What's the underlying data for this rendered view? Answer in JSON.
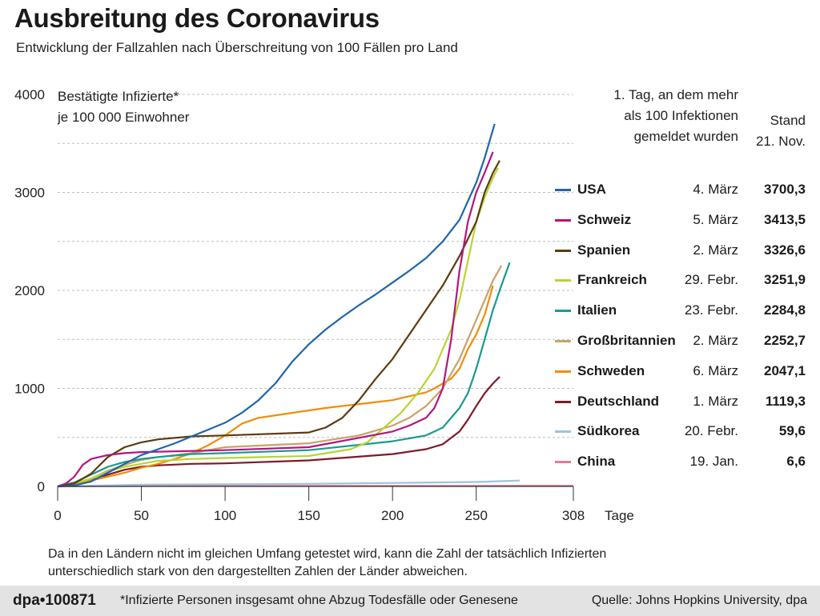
{
  "header": {
    "title": "Ausbreitung des Coronavirus",
    "subtitle": "Entwicklung der Fallzahlen nach Überschreitung von 100 Fällen pro Land"
  },
  "chart_data": {
    "type": "line",
    "ylabel_line1": "Bestätigte Infizierte*",
    "ylabel_line2": "je 100 000 Einwohner",
    "xlabel": "Tage",
    "xlim": [
      0,
      308
    ],
    "ylim": [
      0,
      4000
    ],
    "xticks": [
      "0",
      "50",
      "100",
      "150",
      "200",
      "250",
      "308"
    ],
    "yticks": [
      "0",
      "1000",
      "2000",
      "3000",
      "4000"
    ],
    "grid": "horizontal dashed",
    "legend_header": {
      "date_line1": "1. Tag, an dem mehr",
      "date_line2": "als 100 Infektionen",
      "date_line3": "gemeldet wurden",
      "value_line1": "Stand",
      "value_line2": "21. Nov."
    },
    "series": [
      {
        "name": "USA",
        "color": "#1f66a8",
        "start": "4. März",
        "latest": "3700,3",
        "x": [
          0,
          10,
          20,
          30,
          40,
          50,
          60,
          70,
          80,
          90,
          100,
          110,
          120,
          130,
          140,
          150,
          160,
          170,
          180,
          190,
          200,
          210,
          220,
          230,
          240,
          250,
          255,
          261
        ],
        "y": [
          0,
          10,
          50,
          140,
          230,
          320,
          380,
          440,
          510,
          580,
          650,
          750,
          880,
          1050,
          1270,
          1450,
          1600,
          1730,
          1850,
          1960,
          2080,
          2200,
          2330,
          2500,
          2720,
          3100,
          3350,
          3700
        ]
      },
      {
        "name": "Schweiz",
        "color": "#b3157f",
        "start": "5. März",
        "latest": "3413,5",
        "x": [
          0,
          5,
          10,
          15,
          20,
          30,
          40,
          50,
          100,
          150,
          200,
          210,
          220,
          225,
          230,
          235,
          240,
          245,
          250,
          255,
          260
        ],
        "y": [
          0,
          30,
          100,
          220,
          280,
          320,
          340,
          350,
          370,
          400,
          560,
          620,
          700,
          800,
          1000,
          1500,
          2200,
          2700,
          3000,
          3200,
          3413
        ]
      },
      {
        "name": "Spanien",
        "color": "#5e3a0f",
        "start": "2. März",
        "latest": "3326,6",
        "x": [
          0,
          10,
          20,
          30,
          40,
          50,
          60,
          80,
          100,
          150,
          160,
          170,
          180,
          190,
          200,
          210,
          220,
          230,
          240,
          250,
          255,
          260,
          264
        ],
        "y": [
          0,
          30,
          130,
          300,
          400,
          450,
          480,
          510,
          520,
          550,
          600,
          700,
          880,
          1100,
          1300,
          1550,
          1800,
          2050,
          2350,
          2700,
          3000,
          3200,
          3326
        ]
      },
      {
        "name": "Frankreich",
        "color": "#b7d432",
        "start": "29. Febr.",
        "latest": "3251,9",
        "x": [
          0,
          10,
          20,
          30,
          40,
          50,
          60,
          80,
          100,
          150,
          175,
          185,
          195,
          205,
          215,
          225,
          230,
          235,
          240,
          245,
          250,
          255,
          260,
          263
        ],
        "y": [
          0,
          30,
          80,
          150,
          200,
          230,
          260,
          280,
          290,
          310,
          380,
          450,
          600,
          750,
          950,
          1200,
          1400,
          1600,
          1900,
          2300,
          2700,
          2950,
          3150,
          3251
        ]
      },
      {
        "name": "Italien",
        "color": "#199a8f",
        "start": "23. Febr.",
        "latest": "2284,8",
        "x": [
          0,
          10,
          20,
          30,
          40,
          50,
          60,
          80,
          100,
          150,
          200,
          220,
          230,
          240,
          245,
          250,
          255,
          260,
          265,
          270
        ],
        "y": [
          0,
          40,
          120,
          200,
          250,
          280,
          300,
          330,
          340,
          370,
          460,
          520,
          600,
          800,
          950,
          1200,
          1500,
          1800,
          2050,
          2284
        ]
      },
      {
        "name": "Großbritannien",
        "color": "#c9a26a",
        "start": "2. März",
        "latest": "2252,7",
        "x": [
          0,
          10,
          20,
          30,
          40,
          50,
          60,
          80,
          100,
          150,
          180,
          200,
          210,
          220,
          230,
          240,
          250,
          255,
          260,
          265
        ],
        "y": [
          0,
          30,
          80,
          160,
          220,
          270,
          300,
          340,
          400,
          440,
          520,
          620,
          700,
          820,
          1000,
          1300,
          1700,
          1900,
          2100,
          2252
        ]
      },
      {
        "name": "Schweden",
        "color": "#ef8d0a",
        "start": "6. März",
        "latest": "2047,1",
        "x": [
          0,
          10,
          20,
          30,
          40,
          50,
          60,
          70,
          80,
          90,
          100,
          110,
          120,
          140,
          160,
          180,
          200,
          210,
          220,
          225,
          230,
          235,
          240,
          245,
          250,
          255,
          260
        ],
        "y": [
          0,
          20,
          60,
          100,
          140,
          190,
          230,
          280,
          340,
          420,
          520,
          640,
          700,
          750,
          800,
          840,
          880,
          920,
          960,
          1000,
          1050,
          1100,
          1200,
          1400,
          1550,
          1750,
          2047
        ]
      },
      {
        "name": "Deutschland",
        "color": "#7d1a2b",
        "start": "1. März",
        "latest": "1119,3",
        "x": [
          0,
          10,
          20,
          30,
          40,
          50,
          60,
          80,
          100,
          150,
          200,
          220,
          230,
          240,
          245,
          250,
          255,
          260,
          264
        ],
        "y": [
          0,
          20,
          60,
          120,
          170,
          200,
          215,
          230,
          235,
          265,
          330,
          380,
          430,
          560,
          680,
          820,
          950,
          1050,
          1119
        ]
      },
      {
        "name": "Südkorea",
        "color": "#9cc3e0",
        "start": "20. Febr.",
        "latest": "59,6",
        "x": [
          0,
          50,
          100,
          150,
          200,
          250,
          276
        ],
        "y": [
          0,
          18,
          22,
          26,
          35,
          45,
          59.6
        ]
      },
      {
        "name": "China",
        "color": "#e77d92",
        "start": "19. Jan.",
        "latest": "6,6",
        "x": [
          0,
          50,
          100,
          150,
          200,
          250,
          308
        ],
        "y": [
          0,
          5,
          6,
          6,
          6,
          6,
          6.6
        ]
      }
    ]
  },
  "footnote": "Da in den Ländern nicht im gleichen Umfang getestet wird, kann die Zahl der tatsächlich Infizierten unterschiedlich stark von den dargestellten Zahlen der Länder abweichen.",
  "footer": {
    "id": "dpa•100871",
    "note": "*Infizierte Personen insgesamt ohne Abzug Todesfälle oder Genesene",
    "source": "Quelle: Johns Hopkins University, dpa"
  }
}
